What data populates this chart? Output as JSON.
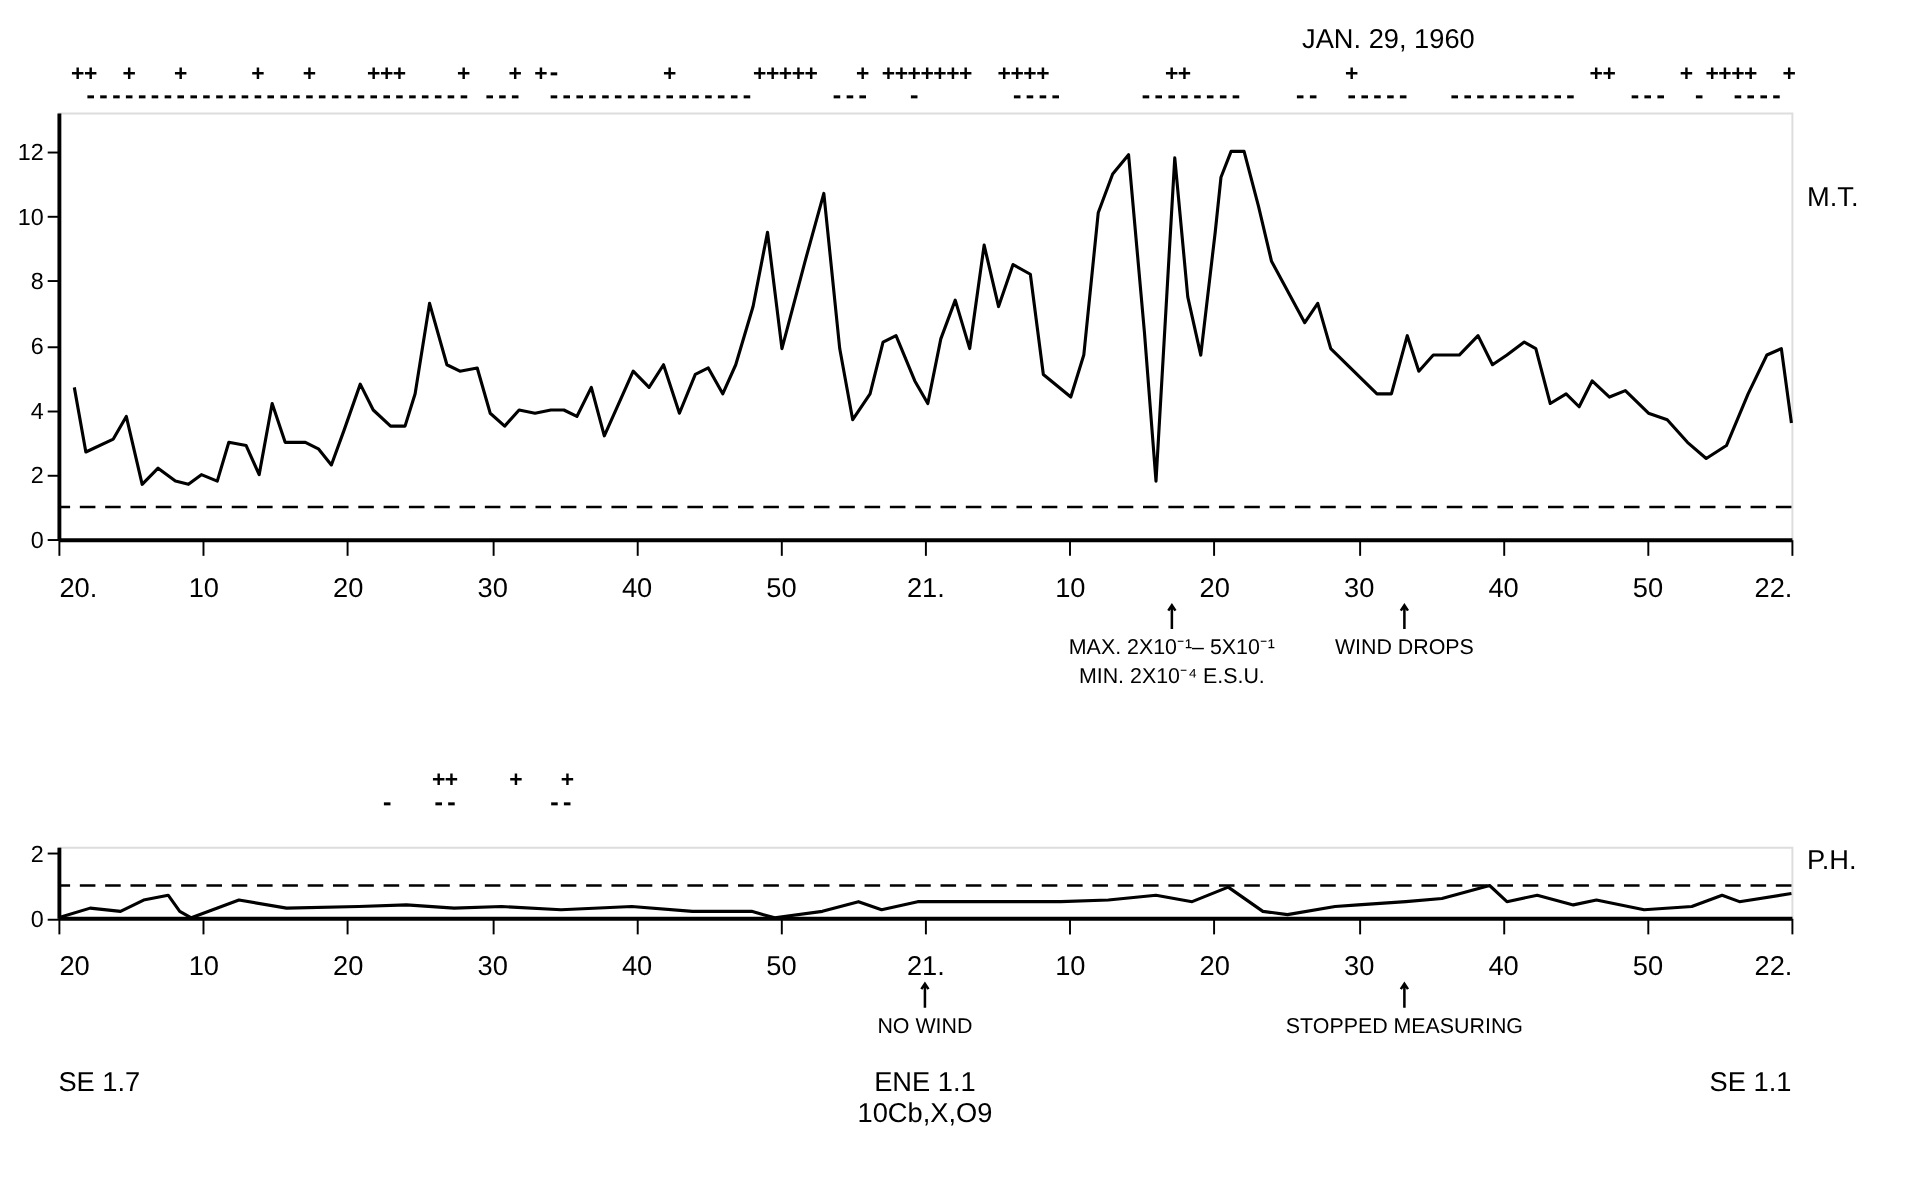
{
  "chart_data": [
    {
      "type": "line",
      "title": "JAN. 29, 1960",
      "ylabel": "M.T.",
      "grid": false,
      "marker": "none",
      "line_style": "solid",
      "xlim": [
        "1960-01-29T20:00",
        "1960-01-29T22:00"
      ],
      "ylim": [
        0,
        13.2
      ],
      "yticks": [
        0,
        2,
        4,
        6,
        8,
        10,
        12
      ],
      "xticks": [
        {
          "value": "1960-01-29T20:00",
          "label": "20."
        },
        {
          "value": "1960-01-29T20:10",
          "label": "10"
        },
        {
          "value": "1960-01-29T20:20",
          "label": "20"
        },
        {
          "value": "1960-01-29T20:30",
          "label": "30"
        },
        {
          "value": "1960-01-29T20:40",
          "label": "40"
        },
        {
          "value": "1960-01-29T20:50",
          "label": "50"
        },
        {
          "value": "1960-01-29T21:00",
          "label": "21."
        },
        {
          "value": "1960-01-29T21:10",
          "label": "10"
        },
        {
          "value": "1960-01-29T21:20",
          "label": "20"
        },
        {
          "value": "1960-01-29T21:30",
          "label": "30"
        },
        {
          "value": "1960-01-29T21:40",
          "label": "40"
        },
        {
          "value": "1960-01-29T21:50",
          "label": "50"
        },
        {
          "value": "1960-01-29T22:00",
          "label": "22."
        }
      ],
      "series": [
        {
          "color": "#000000",
          "x": [
            "1960-01-29T20:01:06",
            "1960-01-29T20:01:54",
            "1960-01-29T20:03:48",
            "1960-01-29T20:04:42",
            "1960-01-29T20:05:48",
            "1960-01-29T20:06:54",
            "1960-01-29T20:08:06",
            "1960-01-29T20:09:00",
            "1960-01-29T20:09:54",
            "1960-01-29T20:11:00",
            "1960-01-29T20:11:48",
            "1960-01-29T20:13:00",
            "1960-01-29T20:13:54",
            "1960-01-29T20:14:48",
            "1960-01-29T20:15:42",
            "1960-01-29T20:17:06",
            "1960-01-29T20:18:00",
            "1960-01-29T20:18:54",
            "1960-01-29T20:19:48",
            "1960-01-29T20:20:54",
            "1960-01-29T20:21:48",
            "1960-01-29T20:23:00",
            "1960-01-29T20:24:00",
            "1960-01-29T20:24:42",
            "1960-01-29T20:25:42",
            "1960-01-29T20:26:54",
            "1960-01-29T20:27:48",
            "1960-01-29T20:29:00",
            "1960-01-29T20:29:54",
            "1960-01-29T20:30:54",
            "1960-01-29T20:31:54",
            "1960-01-29T20:33:00",
            "1960-01-29T20:34:06",
            "1960-01-29T20:35:00",
            "1960-01-29T20:35:54",
            "1960-01-29T20:36:54",
            "1960-01-29T20:37:48",
            "1960-01-29T20:39:48",
            "1960-01-29T20:40:54",
            "1960-01-29T20:41:54",
            "1960-01-29T20:43:00",
            "1960-01-29T20:44:06",
            "1960-01-29T20:45:00",
            "1960-01-29T20:46:00",
            "1960-01-29T20:46:54",
            "1960-01-29T20:48:06",
            "1960-01-29T20:49:06",
            "1960-01-29T20:50:06",
            "1960-01-29T20:51:42",
            "1960-01-29T20:53:00",
            "1960-01-29T20:54:06",
            "1960-01-29T20:55:00",
            "1960-01-29T20:56:12",
            "1960-01-29T20:57:06",
            "1960-01-29T20:58:00",
            "1960-01-29T20:59:18",
            "1960-01-29T21:00:12",
            "1960-01-29T21:01:06",
            "1960-01-29T21:02:06",
            "1960-01-29T21:03:06",
            "1960-01-29T21:04:06",
            "1960-01-29T21:05:06",
            "1960-01-29T21:06:06",
            "1960-01-29T21:07:18",
            "1960-01-29T21:08:12",
            "1960-01-29T21:10:06",
            "1960-01-29T21:11:00",
            "1960-01-29T21:12:00",
            "1960-01-29T21:13:00",
            "1960-01-29T21:14:06",
            "1960-01-29T21:15:12",
            "1960-01-29T21:16:00",
            "1960-01-29T21:17:18",
            "1960-01-29T21:18:12",
            "1960-01-29T21:19:06",
            "1960-01-29T21:20:06",
            "1960-01-29T21:20:30",
            "1960-01-29T21:21:12",
            "1960-01-29T21:22:06",
            "1960-01-29T21:23:06",
            "1960-01-29T21:24:00",
            "1960-01-29T21:26:18",
            "1960-01-29T21:27:12",
            "1960-01-29T21:28:06",
            "1960-01-29T21:31:18",
            "1960-01-29T21:32:18",
            "1960-01-29T21:33:24",
            "1960-01-29T21:34:12",
            "1960-01-29T21:35:12",
            "1960-01-29T21:37:00",
            "1960-01-29T21:38:18",
            "1960-01-29T21:39:18",
            "1960-01-29T21:40:18",
            "1960-01-29T21:41:30",
            "1960-01-29T21:42:18",
            "1960-01-29T21:43:18",
            "1960-01-29T21:44:24",
            "1960-01-29T21:45:18",
            "1960-01-29T21:46:12",
            "1960-01-29T21:47:24",
            "1960-01-29T21:48:30",
            "1960-01-29T21:50:06",
            "1960-01-29T21:51:24",
            "1960-01-29T21:52:48",
            "1960-01-29T21:54:06",
            "1960-01-29T21:55:30",
            "1960-01-29T21:57:00",
            "1960-01-29T21:58:18",
            "1960-01-29T21:59:18",
            "1960-01-29T22:00:00"
          ],
          "values": [
            4.7,
            2.7,
            3.1,
            3.8,
            1.7,
            2.2,
            1.8,
            1.7,
            2.0,
            1.8,
            3.0,
            2.9,
            2.0,
            4.2,
            3.0,
            3.0,
            2.8,
            2.3,
            3.4,
            4.8,
            4.0,
            3.5,
            3.5,
            4.5,
            7.3,
            5.4,
            5.2,
            5.3,
            3.9,
            3.5,
            4.0,
            3.9,
            4.0,
            4.0,
            3.8,
            4.7,
            3.2,
            5.2,
            4.7,
            5.4,
            3.9,
            5.1,
            5.3,
            4.5,
            5.4,
            7.2,
            9.5,
            5.9,
            8.6,
            10.7,
            5.9,
            3.7,
            4.5,
            6.1,
            6.3,
            4.9,
            4.2,
            6.2,
            7.4,
            5.9,
            9.1,
            7.2,
            8.5,
            8.2,
            5.1,
            4.4,
            5.7,
            10.1,
            11.3,
            11.9,
            6.4,
            1.8,
            11.8,
            7.5,
            5.7,
            9.5,
            11.2,
            12.0,
            12.0,
            10.3,
            8.6,
            6.7,
            7.3,
            5.9,
            4.5,
            4.5,
            6.3,
            5.2,
            5.7,
            5.7,
            6.3,
            5.4,
            5.7,
            6.1,
            5.9,
            4.2,
            4.5,
            4.1,
            4.9,
            4.4,
            4.6,
            3.9,
            3.7,
            3.0,
            2.5,
            2.9,
            4.5,
            5.7,
            5.9,
            3.6
          ]
        }
      ],
      "ref_lines": [
        {
          "axis": "y",
          "value": 1,
          "line_style": "dashed",
          "color": "#000000"
        }
      ],
      "annotations": [
        {
          "text": "MAX. 2X10⁻¹– 5X10⁻¹\nMIN. 2X10⁻⁴ E.S.U.",
          "x": "1960-01-29T21:17:06"
        },
        {
          "text": "WIND DROPS",
          "x": "1960-01-29T21:33:12"
        },
        "++  +   +     +   +    +++    +   + +-        +      +++++   + +++++++  ++++         ++            +                  ++     + ++++  +",
        "------------------------------ ---  ----------------      ---   -       ----      --------    --  -----   ----------    ---  -  ----"
      ]
    },
    {
      "type": "line",
      "ylabel": "P.H.",
      "grid": false,
      "marker": "none",
      "line_style": "solid",
      "xlim": [
        "1960-01-29T20:00",
        "1960-01-29T22:00"
      ],
      "ylim": [
        0,
        2.2
      ],
      "yticks": [
        0,
        2
      ],
      "xticks": [
        {
          "value": "1960-01-29T20:00",
          "label": "20"
        },
        {
          "value": "1960-01-29T20:10",
          "label": "10"
        },
        {
          "value": "1960-01-29T20:20",
          "label": "20"
        },
        {
          "value": "1960-01-29T20:30",
          "label": "30"
        },
        {
          "value": "1960-01-29T20:40",
          "label": "40"
        },
        {
          "value": "1960-01-29T20:50",
          "label": "50"
        },
        {
          "value": "1960-01-29T21:00",
          "label": "21."
        },
        {
          "value": "1960-01-29T21:10",
          "label": "10"
        },
        {
          "value": "1960-01-29T21:20",
          "label": "20"
        },
        {
          "value": "1960-01-29T21:30",
          "label": "30"
        },
        {
          "value": "1960-01-29T21:40",
          "label": "40"
        },
        {
          "value": "1960-01-29T21:50",
          "label": "50"
        },
        {
          "value": "1960-01-29T22:00",
          "label": "22."
        }
      ],
      "series": [
        {
          "color": "#000000",
          "x": [
            "1960-01-29T20:00:00",
            "1960-01-29T20:02:12",
            "1960-01-29T20:04:18",
            "1960-01-29T20:05:54",
            "1960-01-29T20:07:36",
            "1960-01-29T20:08:24",
            "1960-01-29T20:09:12",
            "1960-01-29T20:12:30",
            "1960-01-29T20:15:48",
            "1960-01-29T20:20:48",
            "1960-01-29T20:24:06",
            "1960-01-29T20:27:24",
            "1960-01-29T20:30:42",
            "1960-01-29T20:34:48",
            "1960-01-29T20:39:42",
            "1960-01-29T20:43:54",
            "1960-01-29T20:48:00",
            "1960-01-29T20:49:36",
            "1960-01-29T20:52:54",
            "1960-01-29T20:55:24",
            "1960-01-29T20:57:00",
            "1960-01-29T20:59:30",
            "1960-01-29T21:09:24",
            "1960-01-29T21:12:42",
            "1960-01-29T21:16:00",
            "1960-01-29T21:18:30",
            "1960-01-29T21:21:00",
            "1960-01-29T21:23:24",
            "1960-01-29T21:25:06",
            "1960-01-29T21:28:24",
            "1960-01-29T21:30:00",
            "1960-01-29T21:33:18",
            "1960-01-29T21:35:48",
            "1960-01-29T21:39:06",
            "1960-01-29T21:40:18",
            "1960-01-29T21:42:24",
            "1960-01-29T21:44:54",
            "1960-01-29T21:46:30",
            "1960-01-29T21:49:48",
            "1960-01-29T21:53:06",
            "1960-01-29T21:55:12",
            "1960-01-29T21:56:24",
            "1960-01-29T22:00:00"
          ],
          "values": [
            0.0,
            0.3,
            0.2,
            0.55,
            0.7,
            0.2,
            0.0,
            0.55,
            0.3,
            0.35,
            0.4,
            0.3,
            0.35,
            0.25,
            0.35,
            0.2,
            0.2,
            0.0,
            0.2,
            0.5,
            0.25,
            0.5,
            0.5,
            0.55,
            0.7,
            0.5,
            0.95,
            0.2,
            0.1,
            0.35,
            0.4,
            0.5,
            0.6,
            1.0,
            0.5,
            0.7,
            0.4,
            0.55,
            0.25,
            0.35,
            0.7,
            0.5,
            0.75
          ]
        }
      ],
      "ref_lines": [
        {
          "axis": "y",
          "value": 1,
          "line_style": "dashed",
          "color": "#000000"
        }
      ],
      "annotations": [
        {
          "text": "STOPPED MEASURING",
          "x": "1960-01-29T21:33:12"
        },
        "NO WIND",
        "++    +   +",
        "-   --       --",
        "SE 1.7",
        "ENE 1.1\n10Cb,X,O9",
        "SE 1.1"
      ]
    }
  ]
}
